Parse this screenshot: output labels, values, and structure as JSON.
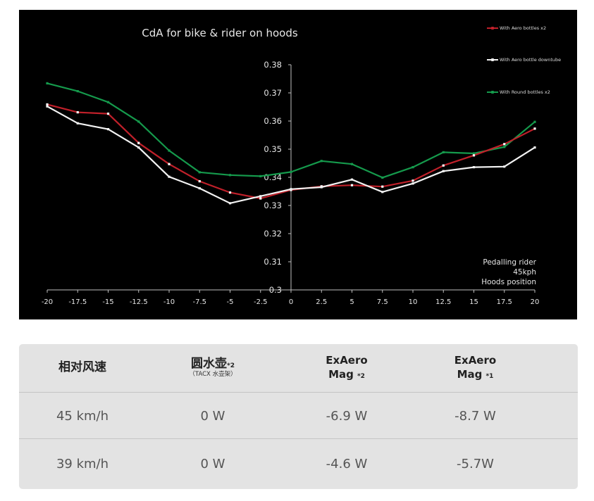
{
  "chart_data": {
    "type": "line",
    "title": "CdA for bike & rider on hoods",
    "x": [
      -20,
      -17.5,
      -15,
      -12.5,
      -10,
      -7.5,
      -5,
      -2.5,
      0,
      2.5,
      5,
      7.5,
      10,
      12.5,
      15,
      17.5,
      20
    ],
    "x_tick_labels": [
      "-20",
      "-17.5",
      "-15",
      "-12.5",
      "-10",
      "-7.5",
      "-5",
      "-2.5",
      "0",
      "2.5",
      "5",
      "7.5",
      "10",
      "12.5",
      "15",
      "17.5",
      "20"
    ],
    "y_tick_labels": [
      "0.38",
      "0.37",
      "0.36",
      "0.35",
      "0.34",
      "0.33",
      "0.32",
      "0.31",
      "0.3"
    ],
    "ylim": [
      0.3,
      0.38
    ],
    "xlim": [
      -20,
      20
    ],
    "grid": false,
    "legend_position": "top-right",
    "series": [
      {
        "name": "With Aero bottles x2",
        "color": "#c0202a",
        "values": [
          0.3659,
          0.3631,
          0.3626,
          0.3522,
          0.3447,
          0.3386,
          0.3346,
          0.3325,
          0.3355,
          0.3368,
          0.3372,
          0.3367,
          0.3388,
          0.3442,
          0.3478,
          0.3518,
          0.3573
        ]
      },
      {
        "name": "With Aero bottle downtube",
        "color": "#f2f2f2",
        "values": [
          0.3652,
          0.3592,
          0.3571,
          0.3506,
          0.3402,
          0.3361,
          0.3308,
          0.3333,
          0.3358,
          0.3365,
          0.3392,
          0.3348,
          0.3378,
          0.3422,
          0.3436,
          0.3438,
          0.3506
        ]
      },
      {
        "name": "With Round bottles x2",
        "color": "#159a4c",
        "values": [
          0.3734,
          0.3706,
          0.3667,
          0.3598,
          0.3495,
          0.3418,
          0.3408,
          0.3404,
          0.3419,
          0.3458,
          0.3447,
          0.3399,
          0.3436,
          0.3489,
          0.3485,
          0.3508,
          0.3597
        ]
      }
    ],
    "annotation": [
      "Pedalling rider",
      "45kph",
      "Hoods position"
    ]
  },
  "table": {
    "headers": [
      {
        "main": "相对风速",
        "sup": "",
        "sub": ""
      },
      {
        "main": "圆水壶",
        "sup": "*2",
        "sub": "（TACX 水壶架）"
      },
      {
        "main": "ExAero",
        "main2": "Mag",
        "sup": "*2",
        "sub": ""
      },
      {
        "main": "ExAero",
        "main2": "Mag",
        "sup": "*1",
        "sub": ""
      }
    ],
    "rows": [
      [
        "45 km/h",
        "0 W",
        "-6.9 W",
        "-8.7 W"
      ],
      [
        "39 km/h",
        "0 W",
        "-4.6 W",
        "-5.7W"
      ]
    ]
  }
}
